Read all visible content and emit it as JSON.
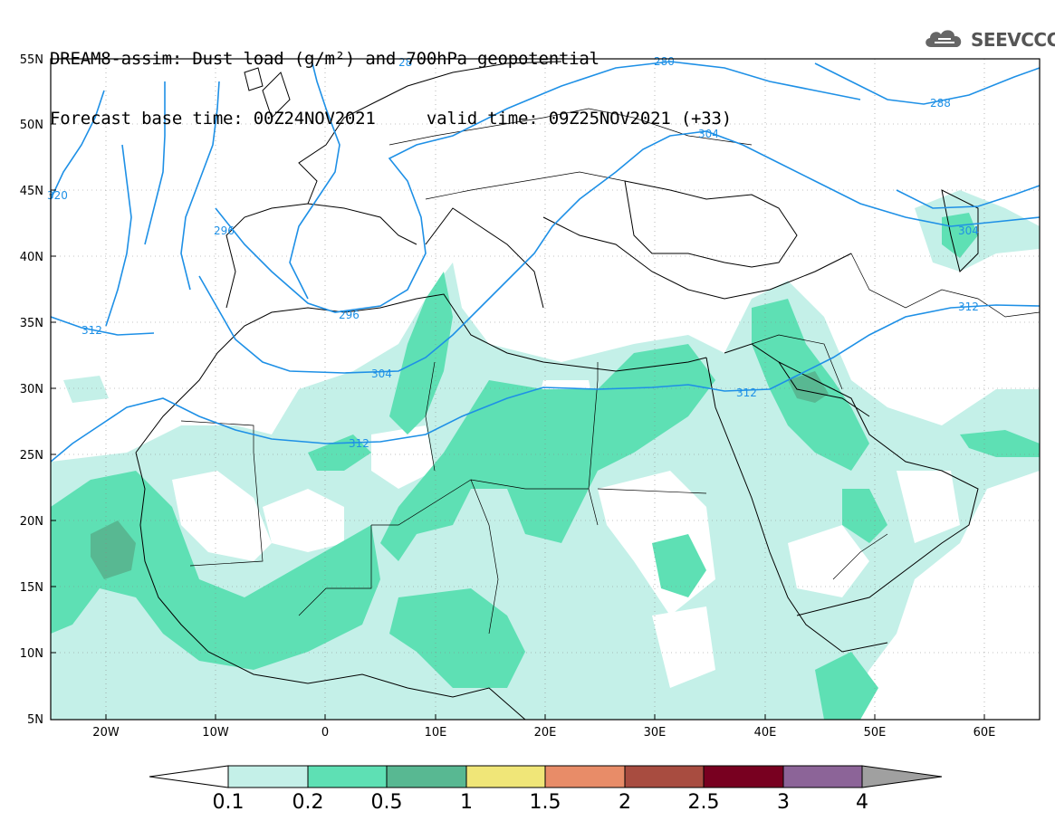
{
  "title": {
    "line1": "DREAM8-assim: Dust load (g/m²) and 700hPa geopotential",
    "line2": "Forecast base time: 00Z24NOV2021     valid time: 09Z25NOV2021 (+33)"
  },
  "logo": {
    "text": "SEEVCCC",
    "icon": "cloud-icon"
  },
  "colors": {
    "contour": "#1e90e6",
    "dust_levels": [
      "#c4f0e8",
      "#5ee0b4",
      "#58b892",
      "#f0e678",
      "#e88c68",
      "#a84c40",
      "#780020",
      "#8c6498",
      "#a0a0a0"
    ]
  },
  "axes": {
    "lat_labels": [
      "55N",
      "50N",
      "45N",
      "40N",
      "35N",
      "30N",
      "25N",
      "20N",
      "15N",
      "10N",
      "5N"
    ],
    "lon_labels": [
      "20W",
      "10W",
      "0",
      "10E",
      "20E",
      "30E",
      "40E",
      "50E",
      "60E"
    ]
  },
  "contours": {
    "labels": [
      "320",
      "296",
      "312",
      "296",
      "304",
      "312",
      "312",
      "304",
      "312",
      "304",
      "288",
      "280",
      "28"
    ]
  },
  "colorbar": {
    "ticks": [
      "0.1",
      "0.2",
      "0.5",
      "1",
      "1.5",
      "2",
      "2.5",
      "3",
      "4"
    ]
  }
}
